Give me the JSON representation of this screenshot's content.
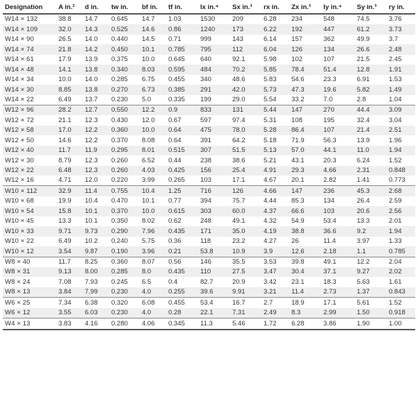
{
  "table": {
    "headers": [
      "Designation",
      "A in.²",
      "d in.",
      "tw in.",
      "bf in.",
      "tf in.",
      "Ix in.⁴",
      "Sx in.³",
      "rx in.",
      "Zx in.³",
      "Iy in.⁴",
      "Sy in.³",
      "ry in."
    ],
    "groups": [
      {
        "rows": [
          [
            "W14 × 132",
            "38.8",
            "14.7",
            "0.645",
            "14.7",
            "1.03",
            "1530",
            "209",
            "6.28",
            "234",
            "548",
            "74.5",
            "3.76"
          ],
          [
            "W14 × 109",
            "32.0",
            "14.3",
            "0.525",
            "14.6",
            "0.86",
            "1240",
            "173",
            "6.22",
            "192",
            "447",
            "61.2",
            "3.73"
          ],
          [
            "W14 × 90",
            "26.5",
            "14.0",
            "0.440",
            "14.5",
            "0.71",
            "999",
            "143",
            "6.14",
            "157",
            "362",
            "49.9",
            "3.7"
          ],
          [
            "W14 × 74",
            "21.8",
            "14.2",
            "0.450",
            "10.1",
            "0.785",
            "795",
            "112",
            "6.04",
            "126",
            "134",
            "26.6",
            "2.48"
          ],
          [
            "W14 × 61",
            "17.9",
            "13.9",
            "0.375",
            "10.0",
            "0.645",
            "640",
            "92.1",
            "5.98",
            "102",
            "107",
            "21.5",
            "2.45"
          ],
          [
            "W14 × 48",
            "14.1",
            "13.8",
            "0.340",
            "8.03",
            "0.595",
            "484",
            "70.2",
            "5.85",
            "78.4",
            "51.4",
            "12.8",
            "1.91"
          ],
          [
            "W14 × 34",
            "10.0",
            "14.0",
            "0.285",
            "6.75",
            "0.455",
            "340",
            "48.6",
            "5.83",
            "54.6",
            "23.3",
            "6.91",
            "1.53"
          ],
          [
            "W14 × 30",
            "8.85",
            "13.8",
            "0.270",
            "6.73",
            "0.385",
            "291",
            "42.0",
            "5.73",
            "47.3",
            "19.6",
            "5.82",
            "1.49"
          ],
          [
            "W14 × 22",
            "6.49",
            "13.7",
            "0.230",
            "5.0",
            "0.335",
            "199",
            "29.0",
            "5.54",
            "33.2",
            "7.0",
            "2.8",
            "1.04"
          ]
        ]
      },
      {
        "rows": [
          [
            "W12 × 96",
            "28.2",
            "12.7",
            "0.550",
            "12.2",
            "0.9",
            "833",
            "131",
            "5.44",
            "147",
            "270",
            "44.4",
            "3.09"
          ],
          [
            "W12 × 72",
            "21.1",
            "12.3",
            "0.430",
            "12.0",
            "0.67",
            "597",
            "97.4",
            "5.31",
            "108",
            "195",
            "32.4",
            "3.04"
          ],
          [
            "W12 × 58",
            "17.0",
            "12.2",
            "0.360",
            "10.0",
            "0.64",
            "475",
            "78.0",
            "5.28",
            "86.4",
            "107",
            "21.4",
            "2.51"
          ],
          [
            "W12 × 50",
            "14.6",
            "12.2",
            "0.370",
            "8.08",
            "0.64",
            "391",
            "64.2",
            "5.18",
            "71.9",
            "56.3",
            "13.9",
            "1.96"
          ],
          [
            "W12 × 40",
            "11.7",
            "11.9",
            "0.295",
            "8.01",
            "0.515",
            "307",
            "51.5",
            "5.13",
            "57.0",
            "44.1",
            "11.0",
            "1.94"
          ],
          [
            "W12 × 30",
            "8.79",
            "12.3",
            "0.260",
            "6.52",
            "0.44",
            "238",
            "38.6",
            "5.21",
            "43.1",
            "20.3",
            "6.24",
            "1.52"
          ],
          [
            "W12 × 22",
            "6.48",
            "12.3",
            "0.260",
            "4.03",
            "0.425",
            "156",
            "25.4",
            "4.91",
            "29.3",
            "4.66",
            "2.31",
            "0.848"
          ],
          [
            "W12 × 16",
            "4.71",
            "12.0",
            "0.220",
            "3.99",
            "0.265",
            "103",
            "17.1",
            "4.67",
            "20.1",
            "2.82",
            "1.41",
            "0.773"
          ]
        ]
      },
      {
        "rows": [
          [
            "W10 × 112",
            "32.9",
            "11.4",
            "0.755",
            "10.4",
            "1.25",
            "716",
            "126",
            "4.66",
            "147",
            "236",
            "45.3",
            "2.68"
          ],
          [
            "W10 × 68",
            "19.9",
            "10.4",
            "0.470",
            "10.1",
            "0.77",
            "394",
            "75.7",
            "4.44",
            "85.3",
            "134",
            "26.4",
            "2.59"
          ],
          [
            "W10 × 54",
            "15.8",
            "10.1",
            "0.370",
            "10.0",
            "0.615",
            "303",
            "60.0",
            "4.37",
            "66.6",
            "103",
            "20.6",
            "2.56"
          ],
          [
            "W10 × 45",
            "13.3",
            "10.1",
            "0.350",
            "8.02",
            "0.62",
            "248",
            "49.1",
            "4.32",
            "54.9",
            "53.4",
            "13.3",
            "2.01"
          ],
          [
            "W10 × 33",
            "9.71",
            "9.73",
            "0.290",
            "7.96",
            "0.435",
            "171",
            "35.0",
            "4.19",
            "38.8",
            "36.6",
            "9.2",
            "1.94"
          ],
          [
            "W10 × 22",
            "6.49",
            "10.2",
            "0.240",
            "5.75",
            "0.36",
            "118",
            "23.2",
            "4.27",
            "26",
            "11.4",
            "3.97",
            "1.33"
          ],
          [
            "W10 × 12",
            "3.54",
            "9.87",
            "0.190",
            "3.96",
            "0.21",
            "53.8",
            "10.9",
            "3.9",
            "12.6",
            "2.18",
            "1.1",
            "0.785"
          ]
        ]
      },
      {
        "rows": [
          [
            "W8 × 40",
            "11.7",
            "8.25",
            "0.360",
            "8.07",
            "0.56",
            "146",
            "35.5",
            "3.53",
            "39.8",
            "49.1",
            "12.2",
            "2.04"
          ],
          [
            "W8 × 31",
            "9.13",
            "8.00",
            "0.285",
            "8.0",
            "0.435",
            "110",
            "27.5",
            "3.47",
            "30.4",
            "37.1",
            "9.27",
            "2.02"
          ],
          [
            "W8 × 24",
            "7.08",
            "7.93",
            "0.245",
            "6.5",
            "0.4",
            "82.7",
            "20.9",
            "3.42",
            "23.1",
            "18.3",
            "5.63",
            "1.61"
          ],
          [
            "W8 × 13",
            "3.84",
            "7.99",
            "0.230",
            "4.0",
            "0.255",
            "39.6",
            "9.91",
            "3.21",
            "11.4",
            "2.73",
            "1.37",
            "0.843"
          ]
        ]
      },
      {
        "rows": [
          [
            "W6 × 25",
            "7.34",
            "6.38",
            "0.320",
            "6.08",
            "0.455",
            "53.4",
            "16.7",
            "2.7",
            "18.9",
            "17.1",
            "5.61",
            "1.52"
          ],
          [
            "W6 × 12",
            "3.55",
            "6.03",
            "0.230",
            "4.0",
            "0.28",
            "22.1",
            "7.31",
            "2.49",
            "8.3",
            "2.99",
            "1.50",
            "0.918"
          ]
        ]
      },
      {
        "rows": [
          [
            "W4 × 13",
            "3.83",
            "4.16",
            "0.280",
            "4.06",
            "0.345",
            "11.3",
            "5.46",
            "1.72",
            "6.28",
            "3.86",
            "1.90",
            "1.00"
          ]
        ]
      }
    ]
  },
  "colors": {
    "zebra": "#efefef",
    "rule": "#555555",
    "group_rule": "#8a8a8a",
    "text": "#333333"
  }
}
